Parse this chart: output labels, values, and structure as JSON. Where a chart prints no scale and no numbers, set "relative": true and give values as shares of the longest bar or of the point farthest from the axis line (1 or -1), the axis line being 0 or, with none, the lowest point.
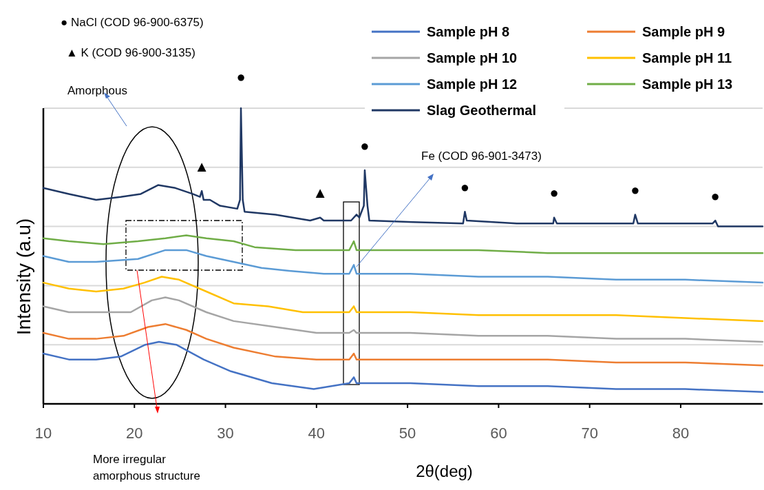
{
  "chart_data": {
    "type": "line",
    "relative": true,
    "xlabel": "2θ(deg)",
    "ylabel": "Intensity (a.u)",
    "xlim": [
      10,
      89
    ],
    "xticks": [
      10,
      20,
      30,
      40,
      50,
      60,
      70,
      80
    ],
    "grid": "y",
    "legend": "top right",
    "marker": "none",
    "line_style": "solid",
    "series": [
      {
        "name": "Sample pH 8",
        "color": "#4472c4",
        "x": [
          10,
          12.8,
          15.8,
          18.5,
          21.2,
          22.7,
          24.6,
          27.6,
          30.6,
          35.1,
          39.7,
          43.6,
          44.1,
          44.4,
          50.3,
          57.8,
          65.4,
          72.9,
          80.5,
          89
        ],
        "values": [
          0.17,
          0.15,
          0.15,
          0.16,
          0.2,
          0.21,
          0.2,
          0.15,
          0.11,
          0.07,
          0.05,
          0.07,
          0.09,
          0.07,
          0.07,
          0.06,
          0.06,
          0.05,
          0.05,
          0.04
        ]
      },
      {
        "name": "Sample pH 9",
        "color": "#ed7d31",
        "x": [
          10,
          12.8,
          15.8,
          18.8,
          21.5,
          23.4,
          25.7,
          27.9,
          30.9,
          35.5,
          40,
          43.6,
          44.1,
          44.4,
          50.3,
          57.8,
          65.4,
          72.9,
          80.5,
          89
        ],
        "values": [
          0.24,
          0.22,
          0.22,
          0.23,
          0.26,
          0.27,
          0.25,
          0.22,
          0.19,
          0.16,
          0.15,
          0.15,
          0.17,
          0.15,
          0.15,
          0.15,
          0.15,
          0.14,
          0.14,
          0.13
        ]
      },
      {
        "name": "Sample pH 10",
        "color": "#a5a5a5",
        "x": [
          10,
          12.8,
          16.6,
          19.6,
          21.9,
          23.4,
          24.9,
          27.9,
          30.9,
          35.5,
          40,
          43.6,
          44.1,
          44.4,
          50.3,
          57.8,
          65.4,
          72.9,
          80.5,
          89
        ],
        "values": [
          0.33,
          0.31,
          0.31,
          0.31,
          0.35,
          0.36,
          0.35,
          0.31,
          0.28,
          0.26,
          0.24,
          0.24,
          0.25,
          0.24,
          0.24,
          0.23,
          0.23,
          0.22,
          0.22,
          0.21
        ]
      },
      {
        "name": "Sample pH 11",
        "color": "#ffc000",
        "x": [
          10,
          12.8,
          15.8,
          18.8,
          21.1,
          23,
          24.9,
          27.9,
          30.9,
          34.7,
          38.5,
          43.6,
          44.1,
          44.4,
          50.3,
          57.8,
          65.4,
          72.9,
          80.5,
          89
        ],
        "values": [
          0.41,
          0.39,
          0.38,
          0.39,
          0.41,
          0.43,
          0.42,
          0.38,
          0.34,
          0.33,
          0.31,
          0.31,
          0.33,
          0.31,
          0.31,
          0.3,
          0.3,
          0.3,
          0.29,
          0.28
        ]
      },
      {
        "name": "Sample pH 12",
        "color": "#5b9bd5",
        "x": [
          10,
          12.8,
          15.8,
          20.4,
          23.4,
          25.7,
          27.9,
          30.9,
          33.958,
          37,
          40.8,
          43.6,
          44.1,
          44.4,
          50.3,
          57.8,
          65.4,
          72.9,
          80.5,
          89
        ],
        "values": [
          0.5,
          0.48,
          0.48,
          0.49,
          0.52,
          0.52,
          0.5,
          0.48,
          0.46,
          0.45,
          0.44,
          0.44,
          0.47,
          0.44,
          0.44,
          0.43,
          0.43,
          0.42,
          0.42,
          0.41
        ]
      },
      {
        "name": "Sample pH 13",
        "color": "#70ad47",
        "x": [
          10,
          12.8,
          16.6,
          20.4,
          23.4,
          25.7,
          27.9,
          30.9,
          33.2,
          37.7,
          43.6,
          44.1,
          44.4,
          50.3,
          57.8,
          65.4,
          72.9,
          80.5,
          89
        ],
        "values": [
          0.56,
          0.55,
          0.54,
          0.55,
          0.56,
          0.57,
          0.56,
          0.55,
          0.53,
          0.52,
          0.52,
          0.55,
          0.52,
          0.52,
          0.52,
          0.51,
          0.51,
          0.51,
          0.51
        ]
      },
      {
        "name": "Slag Geothermal",
        "color": "#203864",
        "x": [
          10,
          12.8,
          15.8,
          18.5,
          20.7,
          22.6,
          24.5,
          26.4,
          27.2,
          27.4,
          27.6,
          28.3,
          29.4,
          31.3,
          31.6,
          31.7,
          31.9,
          32.1,
          35.5,
          39.3,
          40.4,
          40.8,
          43.8,
          44.4,
          44.7,
          45.2,
          45.3,
          45.6,
          45.8,
          50.6,
          56.1,
          56.3,
          56.5,
          62,
          66,
          66.1,
          66.4,
          71.8,
          74.8,
          75,
          75.3,
          83.5,
          83.8,
          84.1,
          89
        ],
        "values": [
          0.73,
          0.71,
          0.69,
          0.7,
          0.71,
          0.74,
          0.73,
          0.71,
          0.7,
          0.72,
          0.69,
          0.69,
          0.67,
          0.66,
          0.69,
          1,
          0.69,
          0.65,
          0.64,
          0.62,
          0.63,
          0.62,
          0.62,
          0.64,
          0.63,
          0.67,
          0.79,
          0.67,
          0.62,
          0.615,
          0.61,
          0.65,
          0.62,
          0.61,
          0.61,
          0.63,
          0.61,
          0.61,
          0.61,
          0.64,
          0.61,
          0.61,
          0.62,
          0.6,
          0.6
        ]
      }
    ],
    "annotations": [
      "● NaCl (COD 96-900-6375)",
      "▲ K (COD 96-900-3135)",
      "Amorphous",
      "Fe (COD 96-901-3473)",
      "More irregular amorphous structure",
      {
        "text": "●",
        "x": 31.7,
        "y": 1
      },
      {
        "text": "●",
        "x": 45.3,
        "y": 0.79
      },
      {
        "text": "●",
        "x": 56.3,
        "y": 0.65
      },
      {
        "text": "●",
        "x": 66.1,
        "y": 0.63
      },
      {
        "text": "●",
        "x": 75,
        "y": 0.64
      },
      {
        "text": "●",
        "x": 83.8,
        "y": 0.62
      },
      {
        "text": "▲",
        "x": 27.4,
        "y": 0.72
      },
      {
        "text": "▲",
        "x": 40.4,
        "y": 0.63
      }
    ]
  }
}
